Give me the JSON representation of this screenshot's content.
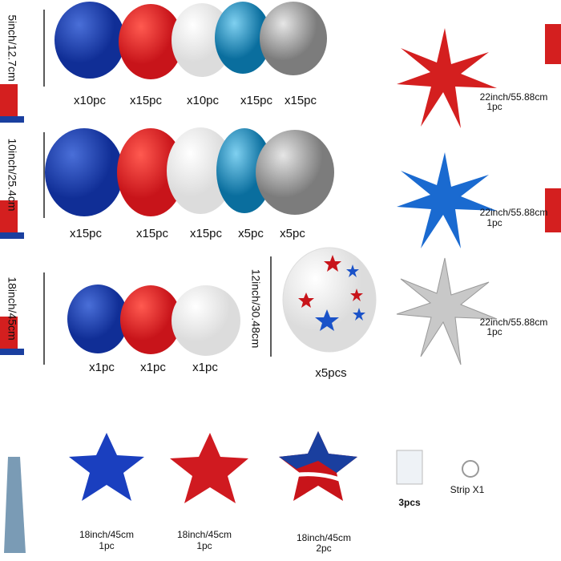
{
  "rows": [
    {
      "size": "5inch/12.7cm",
      "labels": [
        "x10pc",
        "x15pc",
        "x10pc",
        "x15pc",
        "x15pc"
      ]
    },
    {
      "size": "10inch/25.4cm",
      "labels": [
        "x15pc",
        "x15pc",
        "x15pc",
        "x5pc",
        "x5pc"
      ]
    },
    {
      "size": "18inch/45cm",
      "labels": [
        "x1pc",
        "x1pc",
        "x1pc"
      ]
    }
  ],
  "printed_balloon": {
    "size": "12inch/30.48cm",
    "label": "x5pcs"
  },
  "starbursts": [
    {
      "size": "22inch/55.88cm",
      "count": "1pc"
    },
    {
      "size": "22inch/55.88cm",
      "count": "1pc"
    },
    {
      "size": "22inch/55.88cm",
      "count": "1pc"
    }
  ],
  "foil_stars": [
    {
      "size": "18inch/45cm",
      "count": "1pc"
    },
    {
      "size": "18inch/45cm",
      "count": "1pc"
    },
    {
      "size": "18inch/45cm",
      "count": "2pc"
    }
  ],
  "glue_dots": "3pcs",
  "strip": "Strip X1"
}
